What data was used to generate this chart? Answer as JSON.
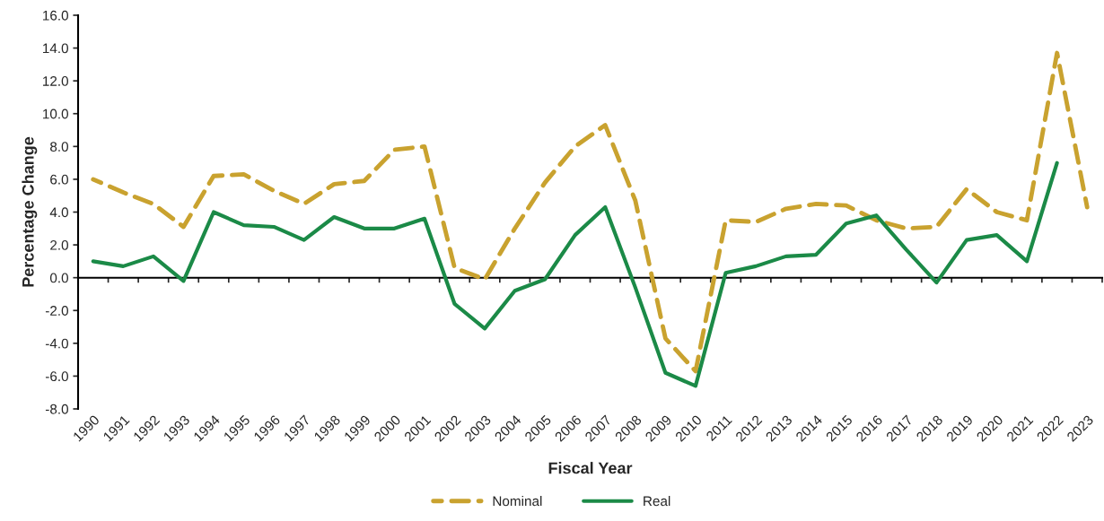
{
  "chart_data": {
    "type": "line",
    "xlabel": "Fiscal Year",
    "ylabel": "Percentage Change",
    "categories": [
      "1990",
      "1991",
      "1992",
      "1993",
      "1994",
      "1995",
      "1996",
      "1997",
      "1998",
      "1999",
      "2000",
      "2001",
      "2002",
      "2003",
      "2004",
      "2005",
      "2006",
      "2007",
      "2008",
      "2009",
      "2010",
      "2011",
      "2012",
      "2013",
      "2014",
      "2015",
      "2016",
      "2017",
      "2018",
      "2019",
      "2020",
      "2021",
      "2022",
      "2023"
    ],
    "series": [
      {
        "name": "Nominal",
        "color": "#c9a22f",
        "line_style": "dashed",
        "values": [
          6.0,
          5.2,
          4.5,
          3.1,
          6.2,
          6.3,
          5.3,
          4.5,
          5.7,
          5.9,
          7.8,
          8.0,
          0.6,
          -0.1,
          3.0,
          5.8,
          8.0,
          9.3,
          4.7,
          -3.7,
          -5.7,
          3.5,
          3.4,
          4.2,
          4.5,
          4.4,
          3.5,
          3.0,
          3.1,
          5.4,
          4.0,
          3.5,
          13.7,
          4.3
        ]
      },
      {
        "name": "Real",
        "color": "#1b8a47",
        "line_style": "solid",
        "values": [
          1.0,
          0.7,
          1.3,
          -0.2,
          4.0,
          3.2,
          3.1,
          2.3,
          3.7,
          3.0,
          3.0,
          3.6,
          -1.6,
          -3.1,
          -0.8,
          -0.1,
          2.6,
          4.3,
          -0.6,
          -5.8,
          -6.6,
          0.3,
          0.7,
          1.3,
          1.4,
          3.3,
          3.8,
          1.7,
          -0.3,
          2.3,
          2.6,
          1.0,
          7.0,
          null
        ]
      }
    ],
    "ylim": [
      -8,
      16
    ],
    "yticks": [
      {
        "value": -8,
        "label": "-8.0"
      },
      {
        "value": -6,
        "label": "-6.0"
      },
      {
        "value": -4,
        "label": "-4.0"
      },
      {
        "value": -2,
        "label": "-2.0"
      },
      {
        "value": 0,
        "label": "0.0"
      },
      {
        "value": 2,
        "label": "2.0"
      },
      {
        "value": 4,
        "label": "4.0"
      },
      {
        "value": 6,
        "label": "6.0"
      },
      {
        "value": 8,
        "label": "8.0"
      },
      {
        "value": 10,
        "label": "10.0"
      },
      {
        "value": 12,
        "label": "12.0"
      },
      {
        "value": 14,
        "label": "14.0"
      },
      {
        "value": 16,
        "label": "16.0"
      }
    ],
    "legend": "bottom",
    "marker": "none"
  }
}
